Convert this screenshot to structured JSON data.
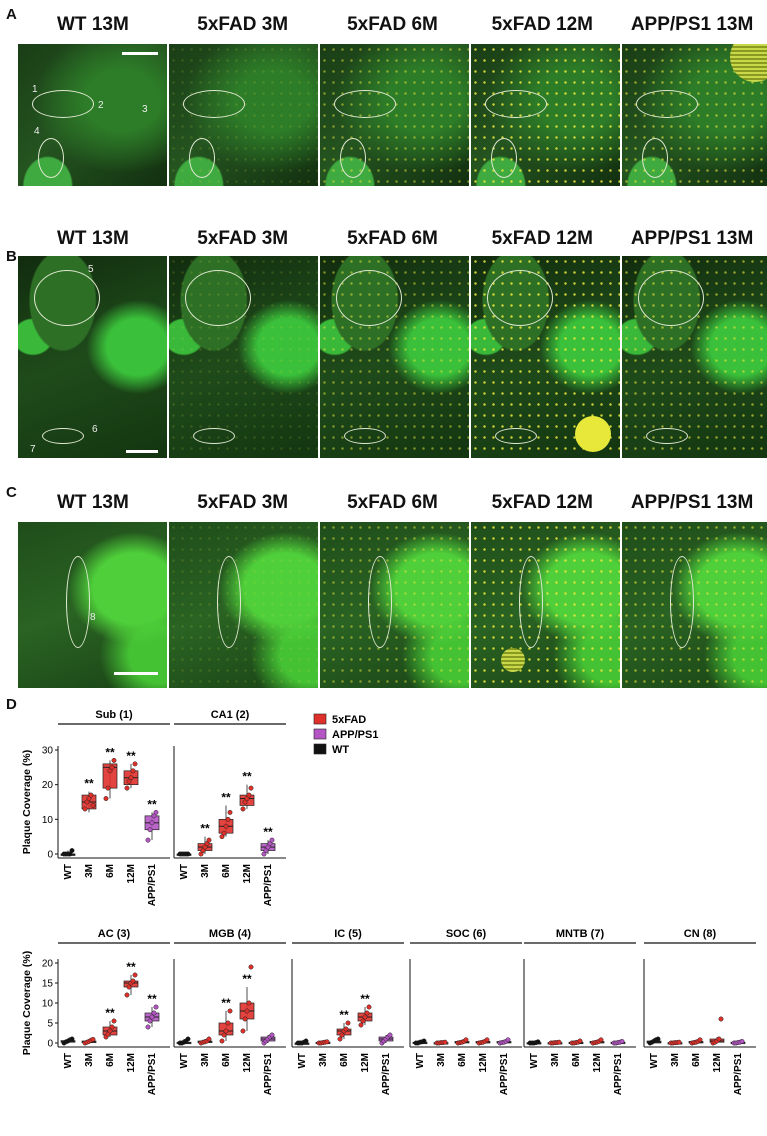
{
  "panels": {
    "A": "A",
    "B": "B",
    "C": "C",
    "D": "D"
  },
  "conditions": [
    "WT 13M",
    "5xFAD 3M",
    "5xFAD 6M",
    "5xFAD 12M",
    "APP/PS1 13M"
  ],
  "region_numbers": {
    "A": [
      "1",
      "2",
      "3",
      "4"
    ],
    "B": [
      "5",
      "6",
      "7"
    ],
    "C": [
      "8"
    ]
  },
  "plaque_intensity": [
    0,
    0.15,
    0.5,
    0.85,
    0.6
  ],
  "colors": {
    "5xFAD": "#e0302a",
    "APP/PS1": "#b455c4",
    "WT": "#111111",
    "tissue": "#2a6323",
    "plaque": "#e8e83a"
  },
  "chart_data": [
    {
      "type": "box",
      "region": "Sub (1)",
      "ylabel": "Plaque Coverage (%)",
      "ylim": [
        0,
        30
      ],
      "yticks": [
        0,
        10,
        20,
        30
      ],
      "categories": [
        "WT",
        "3M",
        "6M",
        "12M",
        "APP/PS1"
      ],
      "medians": [
        0,
        15,
        25,
        22,
        9
      ],
      "q1": [
        0,
        13,
        19,
        20,
        7
      ],
      "q3": [
        0,
        17,
        26,
        24,
        11
      ],
      "min": [
        0,
        12,
        16,
        19,
        4
      ],
      "max": [
        1,
        18,
        27,
        26,
        12
      ],
      "points": [
        [
          0,
          0,
          0,
          0,
          1
        ],
        [
          13,
          15,
          16,
          17,
          14
        ],
        [
          16,
          19,
          24,
          25,
          27
        ],
        [
          19,
          21,
          22,
          24,
          26
        ],
        [
          4,
          7,
          9,
          11,
          12
        ]
      ],
      "sig": [
        "",
        "**",
        "**",
        "**",
        "**"
      ]
    },
    {
      "type": "box",
      "region": "CA1 (2)",
      "ylim": [
        0,
        30
      ],
      "yticks": [
        0,
        10,
        20,
        30
      ],
      "categories": [
        "WT",
        "3M",
        "6M",
        "12M",
        "APP/PS1"
      ],
      "medians": [
        0,
        2,
        8,
        16,
        2
      ],
      "q1": [
        0,
        1,
        6,
        14,
        1
      ],
      "q3": [
        0,
        3,
        10,
        17,
        3
      ],
      "min": [
        0,
        0,
        5,
        13,
        0
      ],
      "max": [
        0,
        5,
        14,
        20,
        4
      ],
      "points": [
        [
          0,
          0,
          0,
          0,
          0
        ],
        [
          0,
          1,
          2,
          3,
          4
        ],
        [
          5,
          6,
          8,
          10,
          12
        ],
        [
          13,
          15,
          16,
          17,
          19
        ],
        [
          0,
          1,
          2,
          3,
          4
        ]
      ],
      "sig": [
        "",
        "**",
        "**",
        "**",
        "**"
      ]
    },
    {
      "type": "box",
      "region": "AC (3)",
      "ylabel": "Plaque Coverage (%)",
      "ylim": [
        0,
        20
      ],
      "yticks": [
        0,
        5,
        10,
        15,
        20
      ],
      "categories": [
        "WT",
        "3M",
        "6M",
        "12M",
        "APP/PS1"
      ],
      "medians": [
        0.5,
        0.3,
        3,
        15,
        6.5
      ],
      "q1": [
        0.2,
        0.1,
        2,
        14,
        5.5
      ],
      "q3": [
        0.6,
        0.5,
        4,
        15.5,
        7.5
      ],
      "min": [
        0,
        0,
        1.5,
        12,
        4
      ],
      "max": [
        1,
        1,
        5.5,
        17,
        9
      ],
      "points": [
        [
          0,
          0.3,
          0.5,
          0.8,
          1
        ],
        [
          0,
          0.2,
          0.4,
          0.7,
          0.9
        ],
        [
          1.5,
          2.2,
          3,
          4,
          5.5
        ],
        [
          12,
          14,
          15,
          15.5,
          17
        ],
        [
          4,
          5.5,
          6.5,
          7.5,
          9
        ]
      ],
      "sig": [
        "",
        "",
        "**",
        "**",
        "**"
      ]
    },
    {
      "type": "box",
      "region": "MGB (4)",
      "ylim": [
        0,
        20
      ],
      "yticks": [
        0,
        5,
        10,
        15,
        20
      ],
      "categories": [
        "WT",
        "3M",
        "6M",
        "12M",
        "APP/PS1"
      ],
      "medians": [
        0,
        0.3,
        3,
        8,
        1
      ],
      "q1": [
        0,
        0.1,
        2,
        6,
        0.5
      ],
      "q3": [
        0.2,
        0.5,
        5,
        10,
        1.5
      ],
      "min": [
        0,
        0,
        0.5,
        3,
        0
      ],
      "max": [
        1,
        1,
        8,
        14,
        2
      ],
      "points": [
        [
          0,
          0,
          0.2,
          0.5,
          1
        ],
        [
          0,
          0.2,
          0.3,
          0.5,
          1
        ],
        [
          0.5,
          2,
          3,
          5,
          8
        ],
        [
          3,
          6,
          8,
          10,
          19
        ],
        [
          0,
          0.5,
          1,
          1.5,
          2
        ]
      ],
      "sig": [
        "",
        "",
        "**",
        "**",
        ""
      ]
    },
    {
      "type": "box",
      "region": "IC (5)",
      "ylim": [
        0,
        20
      ],
      "yticks": [
        0,
        5,
        10,
        15,
        20
      ],
      "categories": [
        "WT",
        "3M",
        "6M",
        "12M",
        "APP/PS1"
      ],
      "medians": [
        0,
        0.1,
        3,
        6.5,
        1
      ],
      "q1": [
        0,
        0,
        2,
        5.5,
        0.5
      ],
      "q3": [
        0,
        0.2,
        3.5,
        7.5,
        1.5
      ],
      "min": [
        0,
        0,
        1,
        4.5,
        0
      ],
      "max": [
        0.5,
        0.3,
        5,
        9,
        2
      ],
      "points": [
        [
          0,
          0,
          0,
          0.2,
          0.5
        ],
        [
          0,
          0,
          0.1,
          0.2,
          0.3
        ],
        [
          1,
          2,
          3,
          3.5,
          5
        ],
        [
          4.5,
          5.5,
          6.5,
          7.5,
          9
        ],
        [
          0,
          0.5,
          1,
          1.5,
          2
        ]
      ],
      "sig": [
        "",
        "",
        "**",
        "**",
        ""
      ]
    },
    {
      "type": "box",
      "region": "SOC (6)",
      "ylim": [
        0,
        20
      ],
      "yticks": [
        0,
        5,
        10,
        15,
        20
      ],
      "categories": [
        "WT",
        "3M",
        "6M",
        "12M",
        "APP/PS1"
      ],
      "medians": [
        0,
        0,
        0.2,
        0.2,
        0.2
      ],
      "q1": [
        0,
        0,
        0,
        0,
        0
      ],
      "q3": [
        0.2,
        0.1,
        0.4,
        0.4,
        0.4
      ],
      "min": [
        0,
        0,
        0,
        0,
        0
      ],
      "max": [
        0.5,
        0.2,
        0.8,
        0.8,
        0.8
      ],
      "points": [
        [
          0,
          0,
          0.2,
          0.3,
          0.5
        ],
        [
          0,
          0,
          0.1,
          0.1,
          0.2
        ],
        [
          0,
          0.1,
          0.2,
          0.4,
          0.8
        ],
        [
          0,
          0.1,
          0.2,
          0.4,
          0.8
        ],
        [
          0,
          0.1,
          0.2,
          0.4,
          0.8
        ]
      ],
      "sig": [
        "",
        "",
        "",
        "",
        ""
      ]
    },
    {
      "type": "box",
      "region": "MNTB (7)",
      "ylim": [
        0,
        20
      ],
      "yticks": [
        0,
        5,
        10,
        15,
        20
      ],
      "categories": [
        "WT",
        "3M",
        "6M",
        "12M",
        "APP/PS1"
      ],
      "medians": [
        0,
        0,
        0,
        0.2,
        0.1
      ],
      "q1": [
        0,
        0,
        0,
        0,
        0
      ],
      "q3": [
        0.1,
        0.1,
        0.2,
        0.4,
        0.2
      ],
      "min": [
        0,
        0,
        0,
        0,
        0
      ],
      "max": [
        0.3,
        0.2,
        0.5,
        0.8,
        0.4
      ],
      "points": [
        [
          0,
          0,
          0,
          0.1,
          0.3
        ],
        [
          0,
          0,
          0.1,
          0.1,
          0.2
        ],
        [
          0,
          0,
          0.1,
          0.2,
          0.5
        ],
        [
          0,
          0.1,
          0.2,
          0.4,
          0.8
        ],
        [
          0,
          0,
          0.1,
          0.2,
          0.4
        ]
      ],
      "sig": [
        "",
        "",
        "",
        "",
        ""
      ]
    },
    {
      "type": "box",
      "region": "CN (8)",
      "ylim": [
        0,
        20
      ],
      "yticks": [
        0,
        5,
        10,
        15,
        20
      ],
      "categories": [
        "WT",
        "3M",
        "6M",
        "12M",
        "APP/PS1"
      ],
      "medians": [
        0.2,
        0,
        0.2,
        0.5,
        0.1
      ],
      "q1": [
        0,
        0,
        0,
        0.2,
        0
      ],
      "q3": [
        0.5,
        0.1,
        0.4,
        1,
        0.2
      ],
      "min": [
        0,
        0,
        0,
        0,
        0
      ],
      "max": [
        1,
        0.2,
        0.8,
        1.5,
        0.4
      ],
      "points": [
        [
          0,
          0.2,
          0.5,
          0.8,
          1
        ],
        [
          0,
          0,
          0.1,
          0.1,
          0.2
        ],
        [
          0,
          0.1,
          0.2,
          0.4,
          0.8
        ],
        [
          0,
          0.2,
          0.5,
          1,
          6
        ],
        [
          0,
          0,
          0.1,
          0.2,
          0.4
        ]
      ],
      "sig": [
        "",
        "",
        "",
        "",
        ""
      ]
    }
  ],
  "legend": [
    {
      "label": "5xFAD",
      "color": "#e0302a"
    },
    {
      "label": "APP/PS1",
      "color": "#b455c4"
    },
    {
      "label": "WT",
      "color": "#111111"
    }
  ]
}
